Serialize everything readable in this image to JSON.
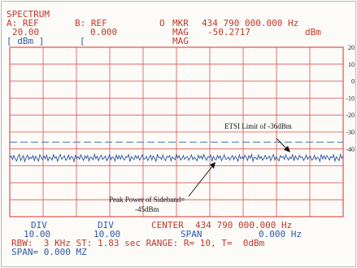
{
  "header": {
    "title": "SPECTRUM",
    "a_ref_label": "A: REF",
    "b_ref_label": "B: REF",
    "a_ref_value": "20.00",
    "b_ref_value": "0.000",
    "a_unit": "[ dBm ]",
    "b_unit": "[",
    "marker_symbol": "O",
    "mkr_label": "MKR",
    "mkr_value": "434 790 000.000 Hz",
    "mag_label": "MAG",
    "mag_value": "-50.2717",
    "mag_unit": "dBm",
    "mag_label2": "MAG"
  },
  "footer": {
    "div_left_label": "DIV",
    "div_left_value": "10.00",
    "div_right_label": "DIV",
    "div_right_value": "10.00",
    "center_label": "CENTER",
    "center_value": "434 790 000.000 Hz",
    "span_label": "SPAN",
    "span_value": "0.000 Hz",
    "rbw_line": "RBW:  3 KHz ST: 1.83 sec RANGE: R= 10, T=  0dBm",
    "span_line": "SPAN= 0.000 MZ"
  },
  "annotations": {
    "limit": "ETSI Limit of -36dBm",
    "peak_line1": "Peak Power of Sideband=",
    "peak_line2": "-45dBm"
  },
  "colors": {
    "grid": "#d9534f",
    "trace": "#2b55a0",
    "limit_line": "#4a7ab8",
    "text_red": "#c0392b",
    "text_blue": "#2e5aa8"
  },
  "chart_data": {
    "type": "line",
    "title": "SPECTRUM",
    "xlabel": "",
    "ylabel": "dBm",
    "yticks": [
      20,
      10,
      0,
      -10,
      -20,
      -30,
      -40
    ],
    "ylim": [
      -80,
      20
    ],
    "grid": true,
    "limit_line": {
      "value": -36,
      "label": "ETSI Limit of -36dBm"
    },
    "series": [
      {
        "values": [
          -45.2,
          -44.1,
          -46.3,
          -43.8,
          -45.9,
          -47.1,
          -44.6,
          -43.2,
          -46.8,
          -45.4,
          -44.0,
          -47.5,
          -45.1,
          -43.6,
          -46.2,
          -44.8,
          -45.7,
          -43.9,
          -46.9,
          -44.3,
          -45.6,
          -47.2,
          -43.5,
          -45.0,
          -46.4,
          -44.2,
          -45.8,
          -43.7,
          -47.0,
          -44.9,
          -45.3,
          -46.6,
          -43.4,
          -45.5,
          -44.5,
          -47.3,
          -44.7,
          -43.3,
          -46.1,
          -45.2,
          -44.0,
          -46.7,
          -45.9,
          -43.6,
          -46.3,
          -44.4,
          -45.0,
          -47.4,
          -43.8,
          -45.7,
          -44.6,
          -46.0,
          -43.5,
          -45.4,
          -46.8,
          -44.1,
          -45.6,
          -43.9,
          -47.1,
          -44.8,
          -45.1,
          -46.5,
          -43.2,
          -45.8,
          -44.3,
          -47.0,
          -44.9,
          -43.7,
          -46.2,
          -45.3,
          -44.2,
          -46.9,
          -45.5,
          -43.4,
          -46.4,
          -44.7,
          -45.2,
          -47.2,
          -43.6,
          -45.9,
          -44.0,
          -46.1,
          -43.8,
          -45.7,
          -46.6,
          -44.5,
          -45.0,
          -43.3,
          -47.5,
          -44.6,
          -45.4,
          -46.3,
          -43.9,
          -45.6,
          -44.1,
          -46.7,
          -45.1,
          -43.5,
          -46.0,
          -45.8,
          -44.4,
          -46.8,
          -45.3,
          -43.7,
          -46.5,
          -44.2,
          -45.5,
          -47.3,
          -43.4,
          -45.2,
          -44.8,
          -46.2,
          -43.6,
          -45.9,
          -46.9,
          -44.3,
          -45.0,
          -43.8,
          -47.1,
          -44.7,
          -45.6,
          -46.4,
          -43.2,
          -45.4,
          -44.0,
          -46.6,
          -45.7,
          -43.9,
          -46.1,
          -45.1,
          -44.5,
          -46.8,
          -45.3,
          -43.5,
          -46.3,
          -44.9,
          -45.8,
          -47.0,
          -43.7,
          -45.5,
          -44.2,
          -46.0,
          -43.3,
          -45.2,
          -46.7,
          -44.6,
          -45.0,
          -43.6,
          -47.4,
          -44.4,
          -45.9,
          -46.5,
          -43.8,
          -45.6,
          -44.1,
          -46.9,
          -45.4,
          -43.4,
          -46.2,
          -45.7,
          -44.8,
          -46.6,
          -45.1,
          -43.9,
          -46.4,
          -44.3,
          -45.3,
          -47.2,
          -43.5,
          -45.8,
          -44.7,
          -46.1,
          -43.7,
          -45.0,
          -46.8,
          -44.0,
          -45.5,
          -43.2,
          -47.3,
          -44.9,
          -45.2,
          -46.3,
          -43.6,
          -45.7,
          -44.5,
          -46.7,
          -45.6,
          -43.8,
          -46.0,
          -45.4,
          -44.2,
          -46.9,
          -45.0,
          -43.3,
          -46.5,
          -44.6,
          -45.9,
          -47.1,
          -43.9,
          -45.1,
          -44.4,
          -46.2,
          -43.5,
          -45.3,
          -46.6,
          -44.8,
          -45.8,
          -43.4,
          -47.0,
          -44.1,
          -45.6,
          -46.4,
          -43.7,
          -45.2,
          -44.7,
          -46.8,
          -45.5,
          -43.6,
          -46.1,
          -45.0,
          -44.3,
          -46.7,
          -45.7,
          -43.8,
          -46.3,
          -44.9,
          -45.4,
          -47.4,
          -43.2,
          -45.9,
          -44.0,
          -46.0,
          -43.9,
          -45.1,
          -46.5,
          -44.5,
          -45.3,
          -43.5,
          -47.2,
          -44.6,
          -45.8,
          -46.9,
          -43.3,
          -45.6,
          -44.2
        ]
      }
    ]
  }
}
